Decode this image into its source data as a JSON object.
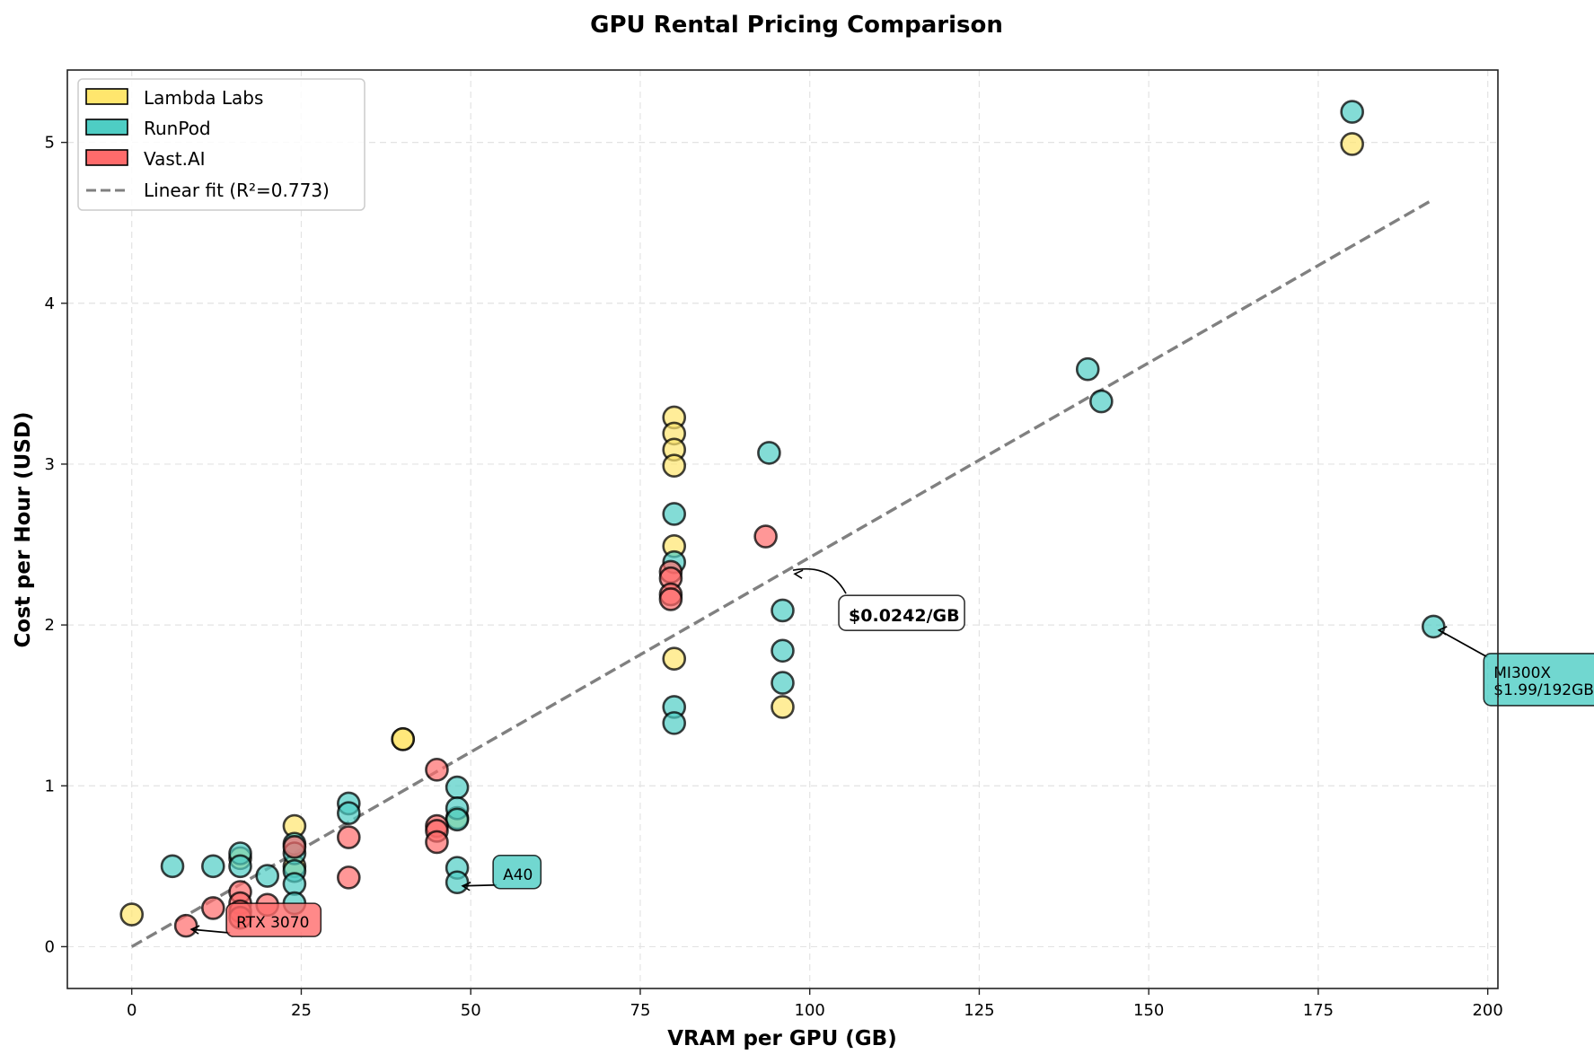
{
  "chart_data": {
    "type": "scatter",
    "title": "GPU Rental Pricing Comparison",
    "xlabel": "VRAM per GPU (GB)",
    "ylabel": "Cost per Hour (USD)",
    "xlim": [
      -9.5,
      201.5
    ],
    "ylim": [
      -0.26,
      5.45
    ],
    "xticks": [
      0,
      25,
      50,
      75,
      100,
      125,
      150,
      175,
      200
    ],
    "yticks": [
      0,
      1,
      2,
      3,
      4,
      5
    ],
    "grid": true,
    "legend_position": "top-left",
    "series": [
      {
        "name": "Lambda Labs",
        "color": "#FFE66D",
        "points": [
          [
            0,
            0.2
          ],
          [
            16,
            0.55
          ],
          [
            24,
            0.75
          ],
          [
            24,
            0.5
          ],
          [
            40,
            1.29
          ],
          [
            40,
            1.29
          ],
          [
            48,
            0.8
          ],
          [
            80,
            3.29
          ],
          [
            80,
            3.19
          ],
          [
            80,
            3.09
          ],
          [
            80,
            2.99
          ],
          [
            80,
            2.49
          ],
          [
            80,
            1.79
          ],
          [
            96,
            1.49
          ],
          [
            180,
            4.99
          ]
        ]
      },
      {
        "name": "RunPod",
        "color": "#4ECDC4",
        "points": [
          [
            6,
            0.5
          ],
          [
            12,
            0.5
          ],
          [
            16,
            0.58
          ],
          [
            16,
            0.5
          ],
          [
            20,
            0.44
          ],
          [
            24,
            0.64
          ],
          [
            24,
            0.58
          ],
          [
            24,
            0.47
          ],
          [
            24,
            0.39
          ],
          [
            24,
            0.27
          ],
          [
            32,
            0.89
          ],
          [
            32,
            0.83
          ],
          [
            48,
            0.99
          ],
          [
            48,
            0.86
          ],
          [
            48,
            0.79
          ],
          [
            48,
            0.49
          ],
          [
            48,
            0.4
          ],
          [
            80,
            2.69
          ],
          [
            80,
            2.39
          ],
          [
            80,
            1.49
          ],
          [
            80,
            1.39
          ],
          [
            94,
            3.07
          ],
          [
            96,
            2.09
          ],
          [
            96,
            1.84
          ],
          [
            96,
            1.64
          ],
          [
            141,
            3.59
          ],
          [
            143,
            3.39
          ],
          [
            180,
            5.19
          ],
          [
            192,
            1.99
          ]
        ]
      },
      {
        "name": "Vast.AI",
        "color": "#FF6B6B",
        "points": [
          [
            8,
            0.13
          ],
          [
            12,
            0.24
          ],
          [
            16,
            0.34
          ],
          [
            16,
            0.27
          ],
          [
            16,
            0.22
          ],
          [
            16,
            0.18
          ],
          [
            20,
            0.26
          ],
          [
            24,
            0.62
          ],
          [
            32,
            0.68
          ],
          [
            32,
            0.43
          ],
          [
            45,
            1.1
          ],
          [
            45,
            0.75
          ],
          [
            45,
            0.72
          ],
          [
            45,
            0.65
          ],
          [
            79.5,
            2.33
          ],
          [
            79.5,
            2.29
          ],
          [
            79.5,
            2.19
          ],
          [
            79.5,
            2.16
          ],
          [
            93.5,
            2.55
          ]
        ]
      }
    ],
    "fit_line": {
      "name": "Linear fit (R²=0.773)",
      "slope": 0.0242,
      "intercept": 0.0,
      "x_range": [
        0,
        192
      ],
      "color": "#808080"
    },
    "annotations": [
      {
        "text": "RTX 3070",
        "target": [
          8,
          0.13
        ],
        "series": "Vast.AI",
        "style": "filled"
      },
      {
        "text": "A40",
        "target": [
          48,
          0.4
        ],
        "series": "RunPod",
        "style": "filled"
      },
      {
        "text": "$0.0242/GB",
        "target": [
          97,
          2.34
        ],
        "series": null,
        "style": "white-bold"
      },
      {
        "text": "MI300X\n$1.99/192GB",
        "target": [
          192,
          1.99
        ],
        "series": "RunPod",
        "style": "filled"
      }
    ]
  }
}
